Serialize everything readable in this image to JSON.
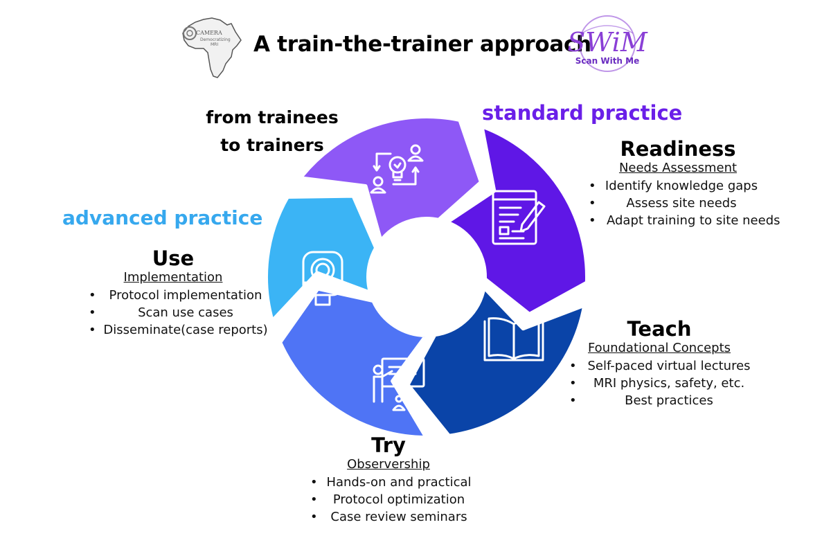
{
  "title": "A train-the-trainer approach",
  "logos": {
    "camera": {
      "lines": [
        "CAMERA",
        "Democratizing",
        "MRI"
      ]
    },
    "swim": {
      "mark": "SWiM",
      "tagline": "Scan With Me",
      "color": "#8a3fd6"
    }
  },
  "cycle_labels": {
    "from_trainees": [
      "from trainees",
      "to trainers"
    ],
    "standard_practice": "standard practice",
    "advanced_practice": "advanced practice"
  },
  "colors": {
    "purple_light": "#8e58f6",
    "purple_deep": "#5f17e6",
    "navy": "#0a44a8",
    "blue_mid": "#4f74f5",
    "sky": "#3bb4f5",
    "standard_practice": "#6a1fe8",
    "advanced_practice": "#36a8ee"
  },
  "stages": {
    "readiness": {
      "title": "Readiness",
      "subtitle": "Needs Assessment ",
      "bullets": [
        "Identify knowledge gaps",
        "Assess site needs",
        "Adapt training to site needs"
      ],
      "icon": "document-pencil-icon"
    },
    "teach": {
      "title": "Teach",
      "subtitle": "Foundational Concepts",
      "bullets": [
        "Self-paced virtual lectures",
        "MRI physics, safety, etc.",
        "Best practices"
      ],
      "icon": "open-book-icon"
    },
    "try": {
      "title": "Try",
      "subtitle": "Observership",
      "bullets": [
        "Hands-on and practical",
        "Protocol optimization",
        "Case review seminars"
      ],
      "icon": "presenter-icon"
    },
    "use": {
      "title": "Use",
      "subtitle": "Implementation",
      "bullets": [
        "Protocol implementation",
        "Scan use cases",
        "Disseminate(case reports)"
      ],
      "icon": "mri-scanner-icon"
    },
    "trainer": {
      "icon": "idea-exchange-icon"
    }
  }
}
